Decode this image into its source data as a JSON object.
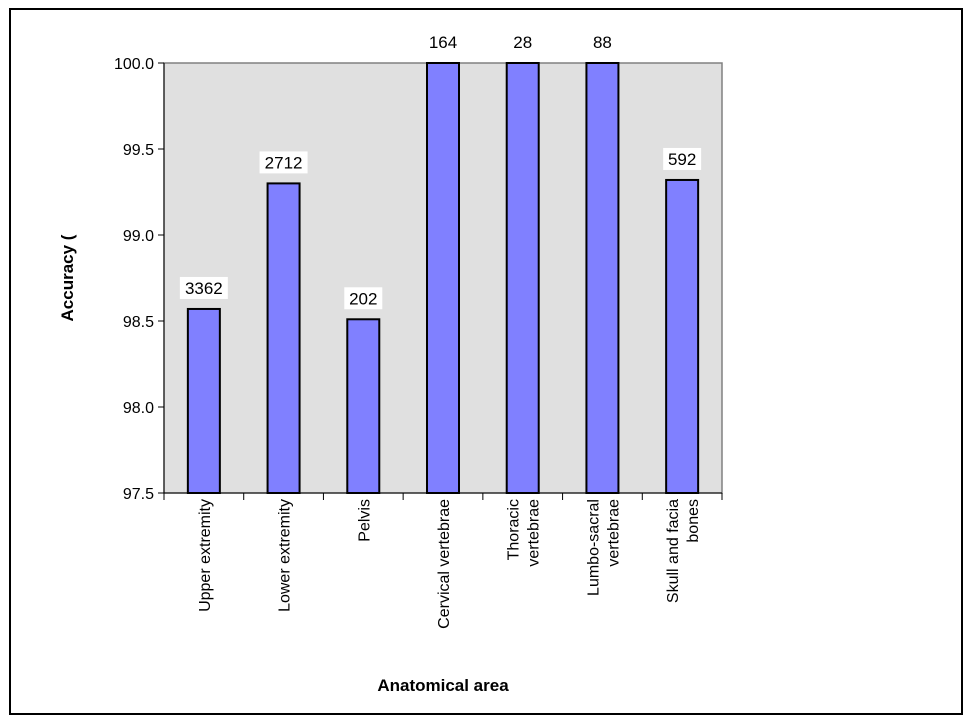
{
  "chart_data": {
    "type": "bar",
    "categories": [
      "Upper extremity",
      "Lower extremity",
      "Pelvis",
      "Cervical vertebrae",
      "Thoracic vertebrae",
      "Lumbo-sacral vertebrae",
      "Skull and facial bones"
    ],
    "category_lines": [
      [
        "Upper extremity"
      ],
      [
        "Lower extremity"
      ],
      [
        "Pelvis"
      ],
      [
        "Cervical vertebrae"
      ],
      [
        "Thoracic",
        "vertebrae"
      ],
      [
        "Lumbo-sacral",
        "vertebrae"
      ],
      [
        "Skull and facia",
        "bones"
      ]
    ],
    "values": [
      98.57,
      99.3,
      98.51,
      100.0,
      100.0,
      100.0,
      99.32
    ],
    "data_labels": [
      "3362",
      "2712",
      "202",
      "164",
      "28",
      "88",
      "592"
    ],
    "ylabel": "Accuracy (",
    "xlabel": "Anatomical area",
    "ylim": [
      97.5,
      100.0
    ],
    "yticks": [
      "97.5",
      "98.0",
      "98.5",
      "99.0",
      "99.5",
      "100.0"
    ],
    "grid": false,
    "legend": "none",
    "colors": {
      "bar_fill": "#8080ff",
      "plot_background": "#e0e0e0",
      "plot_border": "#808080",
      "axis": "#000000"
    }
  }
}
